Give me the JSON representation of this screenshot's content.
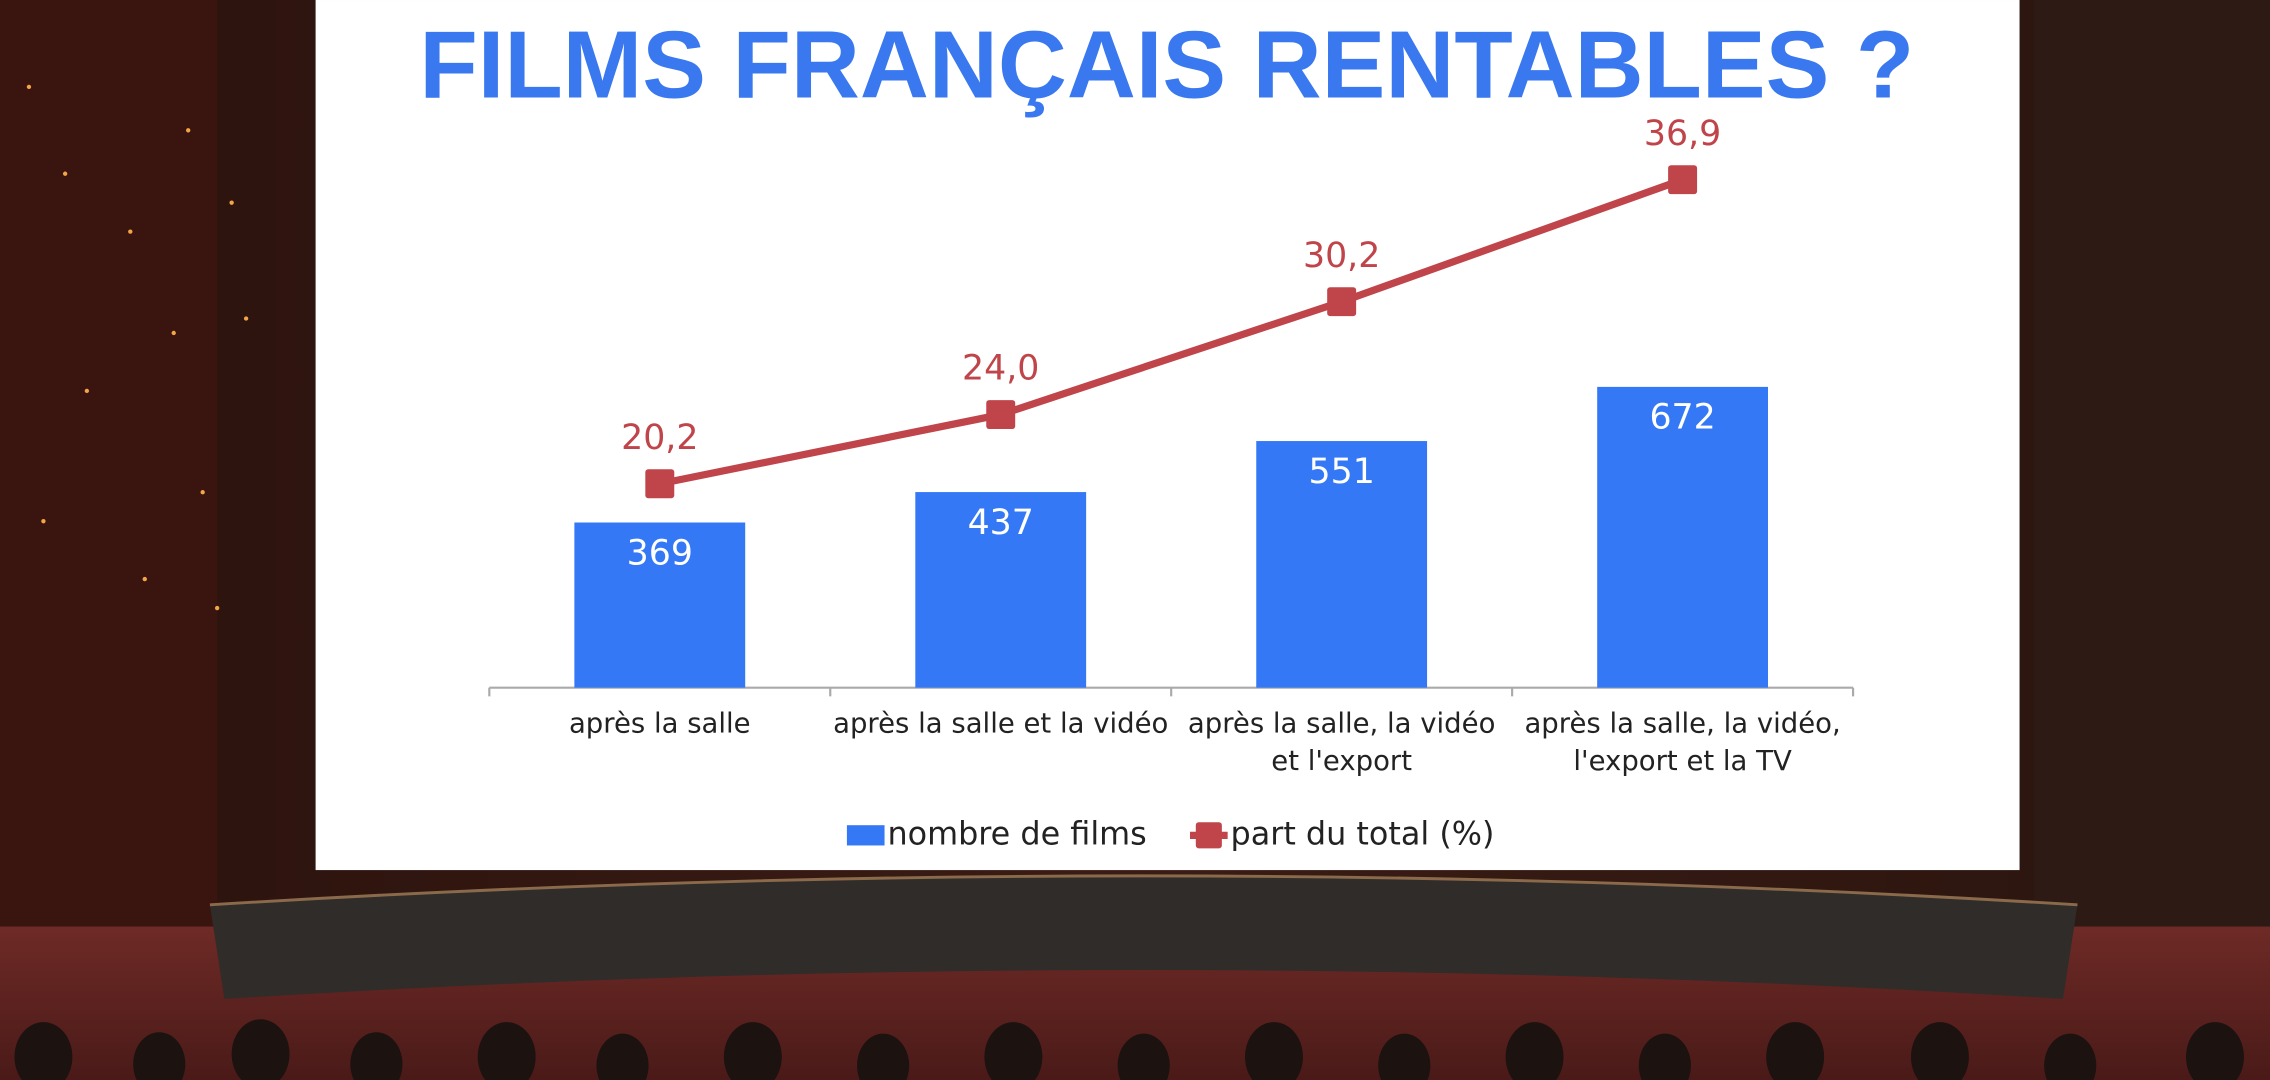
{
  "chart_data": {
    "type": "bar",
    "title": "FILMS FRANÇAIS RENTABLES ?",
    "categories": [
      "après la salle",
      "après la salle et la vidéo",
      "après la salle, la vidéo et l'export",
      "après la salle, la vidéo, l'export et la TV"
    ],
    "series": [
      {
        "name": "nombre de films",
        "type": "bar",
        "color": "#3478f6",
        "values": [
          369,
          437,
          551,
          672
        ]
      },
      {
        "name": "part du total (%)",
        "type": "line",
        "axis": "y2",
        "color": "#c0454a",
        "values": [
          20.2,
          24.0,
          30.2,
          36.9
        ],
        "value_labels": [
          "20,2",
          "24,0",
          "30,2",
          "36,9"
        ]
      }
    ],
    "ylim": [
      0,
      1200
    ],
    "y2lim": [
      9,
      38.5
    ]
  }
}
